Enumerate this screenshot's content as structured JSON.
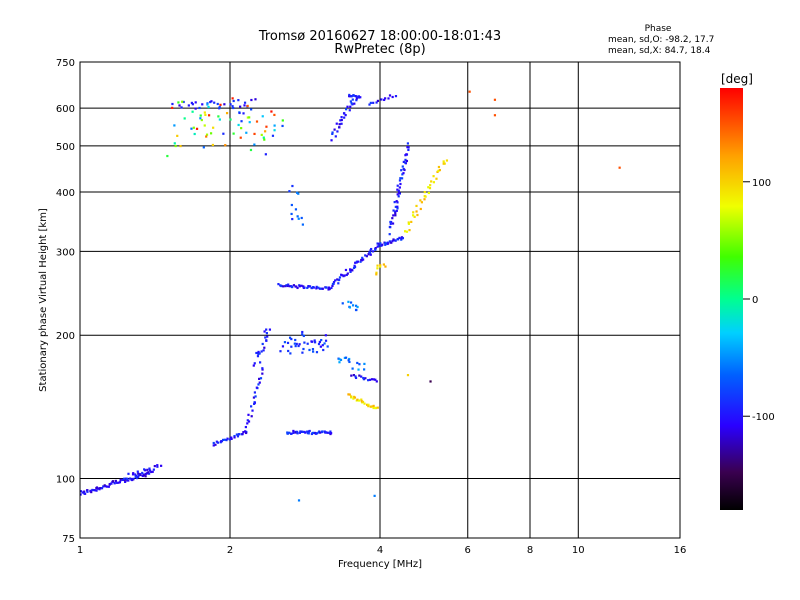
{
  "chart_data": {
    "type": "scatter",
    "title": "Tromsø 20160627 18:00:00-18:01:43",
    "subtitle": "RwPretec (8p)",
    "xlabel": "Frequency [MHz]",
    "ylabel": "Stationary phase Virtual Height [km]",
    "x_scale": "log2",
    "y_scale": "log",
    "xlim": [
      1,
      16
    ],
    "ylim": [
      75,
      750
    ],
    "x_ticks": [
      "1",
      "2",
      "4",
      "6",
      "8",
      "10",
      "16"
    ],
    "x_tick_values": [
      1,
      2,
      4,
      6,
      8,
      10,
      16
    ],
    "y_ticks": [
      "75",
      "100",
      "200",
      "300",
      "400",
      "500",
      "600",
      "750"
    ],
    "y_tick_values": [
      75,
      100,
      200,
      300,
      400,
      500,
      600,
      750
    ],
    "grid": true,
    "phase_box": {
      "title": "Phase",
      "line_o": "mean, sd,O:  -98.2, 17.7",
      "line_x": "mean, sd,X:  84.7, 18.4"
    },
    "colorbar": {
      "label": "[deg]",
      "ticks": [
        "100",
        "0",
        "-100"
      ],
      "tick_values": [
        100,
        0,
        -100
      ],
      "range": [
        -180,
        180
      ]
    },
    "traces": [
      {
        "x0": 1.0,
        "x1": 1.38,
        "h0": 93,
        "h1": 103,
        "phase": -110,
        "n": 70,
        "jit": 0.015
      },
      {
        "x0": 1.22,
        "x1": 1.45,
        "h0": 100,
        "h1": 106,
        "phase": -105,
        "n": 25,
        "jit": 0.02
      },
      {
        "x0": 1.55,
        "x1": 2.25,
        "h0": 610,
        "h1": 615,
        "phase": -100,
        "n": 30,
        "jit": 0.03
      },
      {
        "x0": 1.55,
        "x1": 2.5,
        "h0": 500,
        "h1": 600,
        "phase": 40,
        "n": 70,
        "jit": 0.08,
        "scatter": true
      },
      {
        "x0": 1.85,
        "x1": 2.15,
        "h0": 118,
        "h1": 125,
        "phase": -100,
        "n": 25,
        "jit": 0.01
      },
      {
        "x0": 2.15,
        "x1": 2.32,
        "h0": 125,
        "h1": 170,
        "phase": -100,
        "n": 25,
        "jit": 0.015
      },
      {
        "x0": 2.25,
        "x1": 2.4,
        "h0": 175,
        "h1": 205,
        "phase": -100,
        "n": 20,
        "jit": 0.03
      },
      {
        "x0": 2.5,
        "x1": 3.2,
        "h0": 255,
        "h1": 250,
        "phase": -100,
        "n": 45,
        "jit": 0.01
      },
      {
        "x0": 2.55,
        "x1": 3.1,
        "h0": 190,
        "h1": 200,
        "phase": -90,
        "n": 40,
        "jit": 0.05,
        "scatter": true
      },
      {
        "x0": 2.6,
        "x1": 3.2,
        "h0": 125,
        "h1": 125,
        "phase": -100,
        "n": 45,
        "jit": 0.01
      },
      {
        "x0": 3.2,
        "x1": 4.0,
        "h0": 255,
        "h1": 310,
        "phase": -100,
        "n": 50,
        "jit": 0.015
      },
      {
        "x0": 4.0,
        "x1": 4.45,
        "h0": 310,
        "h1": 320,
        "phase": -100,
        "n": 25,
        "jit": 0.01
      },
      {
        "x0": 4.2,
        "x1": 4.55,
        "h0": 330,
        "h1": 500,
        "phase": -100,
        "n": 50,
        "jit": 0.02
      },
      {
        "x0": 3.2,
        "x1": 3.6,
        "h0": 520,
        "h1": 640,
        "phase": -100,
        "n": 30,
        "jit": 0.02
      },
      {
        "x0": 3.45,
        "x1": 3.65,
        "h0": 640,
        "h1": 630,
        "phase": -100,
        "n": 12,
        "jit": 0.01
      },
      {
        "x0": 3.8,
        "x1": 4.3,
        "h0": 610,
        "h1": 640,
        "phase": -100,
        "n": 12,
        "jit": 0.01
      },
      {
        "x0": 4.5,
        "x1": 5.4,
        "h0": 330,
        "h1": 470,
        "phase": 95,
        "n": 35,
        "jit": 0.02
      },
      {
        "x0": 3.45,
        "x1": 3.95,
        "h0": 150,
        "h1": 140,
        "phase": 95,
        "n": 25,
        "jit": 0.01
      },
      {
        "x0": 3.5,
        "x1": 3.95,
        "h0": 165,
        "h1": 160,
        "phase": -105,
        "n": 15,
        "jit": 0.01
      },
      {
        "x0": 3.3,
        "x1": 3.7,
        "h0": 180,
        "h1": 170,
        "phase": -60,
        "n": 15,
        "jit": 0.03
      },
      {
        "x0": 3.4,
        "x1": 3.6,
        "h0": 235,
        "h1": 225,
        "phase": -60,
        "n": 10,
        "jit": 0.03
      },
      {
        "x0": 3.9,
        "x1": 4.1,
        "h0": 270,
        "h1": 285,
        "phase": 95,
        "n": 8,
        "jit": 0.02
      },
      {
        "x0": 2.6,
        "x1": 2.8,
        "h0": 330,
        "h1": 420,
        "phase": -75,
        "n": 12,
        "jit": 0.04,
        "scatter": true
      }
    ],
    "isolated_points": [
      {
        "x": 6.05,
        "y": 650,
        "phase": 150
      },
      {
        "x": 6.8,
        "y": 625,
        "phase": 150
      },
      {
        "x": 6.8,
        "y": 580,
        "phase": 150
      },
      {
        "x": 12.1,
        "y": 450,
        "phase": 150
      },
      {
        "x": 5.05,
        "y": 160,
        "phase": -150
      },
      {
        "x": 2.75,
        "y": 90,
        "phase": -60
      },
      {
        "x": 3.9,
        "y": 92,
        "phase": -60
      },
      {
        "x": 4.55,
        "y": 165,
        "phase": 100
      }
    ]
  }
}
